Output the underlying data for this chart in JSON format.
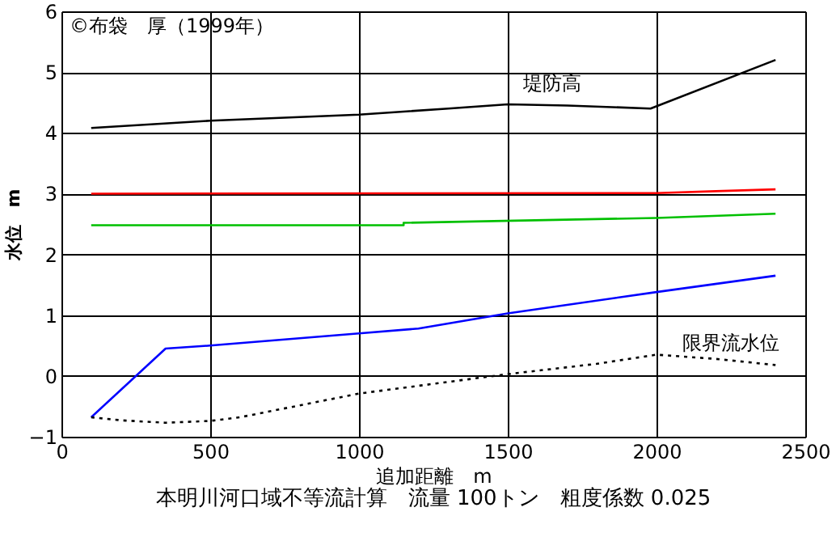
{
  "chart_data": {
    "type": "line",
    "title": "本明川河口域不等流計算　流量 100トン　粗度係数 0.025",
    "xlabel": "追加距離　m",
    "ylabel": "水位　m",
    "annotations": [
      "©布袋　厚（1999年）",
      "堤防高",
      "限界流水位"
    ],
    "xlim": [
      0,
      2500
    ],
    "xticks": [
      0,
      500,
      1000,
      1500,
      2000,
      2500
    ],
    "ylim": [
      -1,
      6
    ],
    "yticks": [
      -1,
      0,
      1,
      2,
      3,
      4,
      5,
      6
    ],
    "grid": true,
    "series": [
      {
        "color": "#000000",
        "x": [
          100,
          500,
          1000,
          1300,
          1500,
          1700,
          1980,
          2400
        ],
        "values": [
          4.08,
          4.2,
          4.3,
          4.4,
          4.47,
          4.45,
          4.4,
          5.2
        ]
      },
      {
        "color": "#ff0000",
        "x": [
          100,
          2000,
          2200,
          2400
        ],
        "values": [
          3.0,
          3.01,
          3.04,
          3.07
        ]
      },
      {
        "color": "#00c000",
        "x": [
          100,
          1150,
          1150,
          2000,
          2400
        ],
        "values": [
          2.48,
          2.48,
          2.52,
          2.6,
          2.67
        ]
      },
      {
        "color": "#0000ff",
        "x": [
          100,
          350,
          500,
          1000,
          1200,
          1500,
          2000,
          2400
        ],
        "values": [
          -0.68,
          0.45,
          0.5,
          0.7,
          0.78,
          1.03,
          1.38,
          1.65
        ]
      },
      {
        "color": "#000000",
        "line_style": "dotted",
        "x": [
          100,
          200,
          350,
          500,
          600,
          1000,
          1500,
          1800,
          2000,
          2200,
          2400
        ],
        "values": [
          -0.68,
          -0.73,
          -0.77,
          -0.74,
          -0.68,
          -0.29,
          0.03,
          0.2,
          0.35,
          0.28,
          0.18
        ]
      }
    ]
  }
}
